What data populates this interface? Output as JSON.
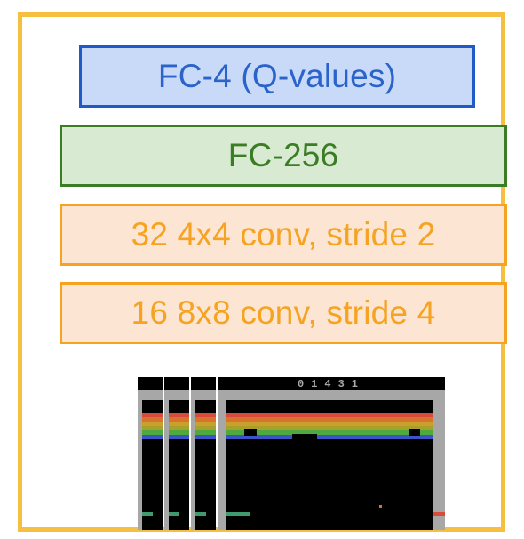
{
  "diagram": {
    "layers": [
      {
        "id": "fc4",
        "label": "FC-4 (Q-values)"
      },
      {
        "id": "fc256",
        "label": "FC-256"
      },
      {
        "id": "conv2",
        "label": "32 4x4 conv, stride 2"
      },
      {
        "id": "conv1",
        "label": "16 8x8 conv, stride 4"
      }
    ],
    "input": {
      "frame_count": 4,
      "score_display": "01431",
      "colors": {
        "frame_border": "#f5bf42",
        "wall": "#a7a7a7",
        "brick_rows": [
          "#d84a3a",
          "#d8722f",
          "#c8a02b",
          "#a8a02a",
          "#4caa3f",
          "#3b55c8"
        ],
        "paddle_left": "#3f9a6f",
        "paddle_right": "#d84a3a",
        "ball": "#d8722f"
      }
    }
  }
}
